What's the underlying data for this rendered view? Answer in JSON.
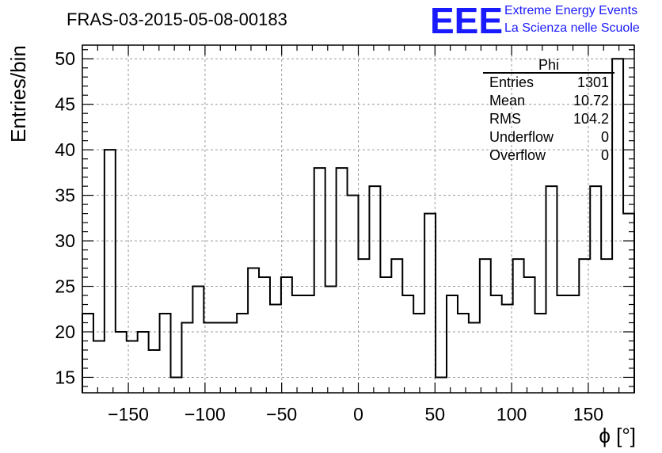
{
  "title": "FRAS-03-2015-05-08-00183",
  "logo": {
    "mark": "EEE",
    "line1": "Extreme Energy Events",
    "line2": "La Scienza nelle Scuole",
    "color": "#1a1aff"
  },
  "stats": {
    "name": "Phi",
    "rows": [
      {
        "label": "Entries",
        "value": "1301"
      },
      {
        "label": "Mean",
        "value": "10.72"
      },
      {
        "label": "RMS",
        "value": "104.2"
      },
      {
        "label": "Underflow",
        "value": "0"
      },
      {
        "label": "Overflow",
        "value": "0"
      }
    ]
  },
  "chart_data": {
    "type": "bar",
    "histogram": true,
    "xlabel": "ϕ [°]",
    "ylabel": "Entries/bin",
    "xlim": [
      -180,
      180
    ],
    "ylim": [
      13.3,
      51.5
    ],
    "bin_width": 7.2,
    "x_ticks": [
      -150,
      -100,
      -50,
      0,
      50,
      100,
      150
    ],
    "y_ticks": [
      15,
      20,
      25,
      30,
      35,
      40,
      45,
      50
    ],
    "grid": true,
    "bin_values": [
      22,
      19,
      40,
      20,
      19,
      20,
      18,
      22,
      15,
      21,
      25,
      21,
      21,
      21,
      22,
      27,
      26,
      23,
      26,
      24,
      24,
      38,
      25,
      38,
      35,
      28,
      36,
      26,
      28,
      24,
      22,
      33,
      15,
      24,
      22,
      21,
      28,
      24,
      23,
      28,
      26,
      22,
      36,
      24,
      24,
      28,
      36,
      28,
      50,
      33
    ]
  }
}
